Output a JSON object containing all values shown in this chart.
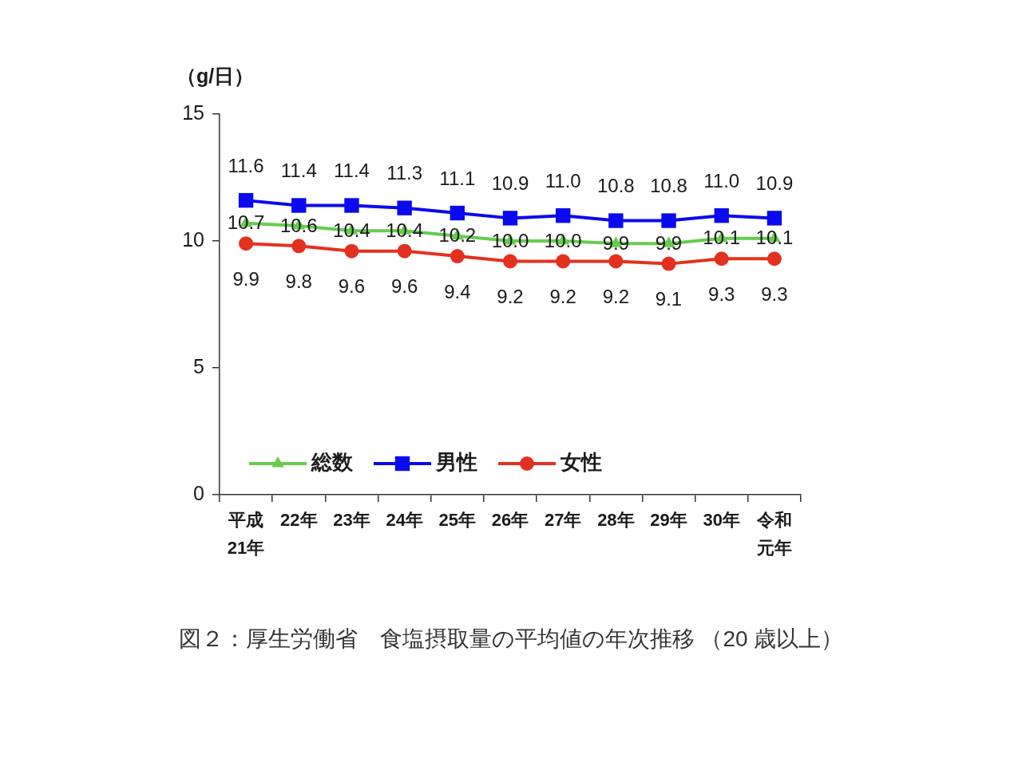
{
  "chart_data": {
    "type": "line",
    "ylabel": "（g/日）",
    "categories": [
      "平成21年",
      "22年",
      "23年",
      "24年",
      "25年",
      "26年",
      "27年",
      "28年",
      "29年",
      "30年",
      "令和元年"
    ],
    "series": [
      {
        "name": "総数",
        "color": "#66cc4d",
        "marker": "triangle",
        "values": [
          10.7,
          10.6,
          10.4,
          10.4,
          10.2,
          10.0,
          10.0,
          9.9,
          9.9,
          10.1,
          10.1
        ],
        "value_labels": [
          "10.7",
          "10.6",
          "10.4",
          "10.4",
          "10.2",
          "10.0",
          "10.0",
          "9.9",
          "9.9",
          "10.1",
          "10.1"
        ]
      },
      {
        "name": "男性",
        "color": "#0a0aee",
        "marker": "square",
        "values": [
          11.6,
          11.4,
          11.4,
          11.3,
          11.1,
          10.9,
          11.0,
          10.8,
          10.8,
          11.0,
          10.9
        ],
        "value_labels": [
          "11.6",
          "11.4",
          "11.4",
          "11.3",
          "11.1",
          "10.9",
          "11.0",
          "10.8",
          "10.8",
          "11.0",
          "10.9"
        ]
      },
      {
        "name": "女性",
        "color": "#e3311f",
        "marker": "circle",
        "values": [
          9.9,
          9.8,
          9.6,
          9.6,
          9.4,
          9.2,
          9.2,
          9.2,
          9.1,
          9.3,
          9.3
        ],
        "value_labels": [
          "9.9",
          "9.8",
          "9.6",
          "9.6",
          "9.4",
          "9.2",
          "9.2",
          "9.2",
          "9.1",
          "9.3",
          "9.3"
        ]
      }
    ],
    "ylim": [
      0,
      15
    ],
    "yticks": [
      0,
      5,
      10,
      15
    ],
    "legend": "bottom left",
    "annotations": [
      "図２：厚生労働省　食塩摂取量の平均値の年次推移 （20 歳以上）"
    ]
  }
}
